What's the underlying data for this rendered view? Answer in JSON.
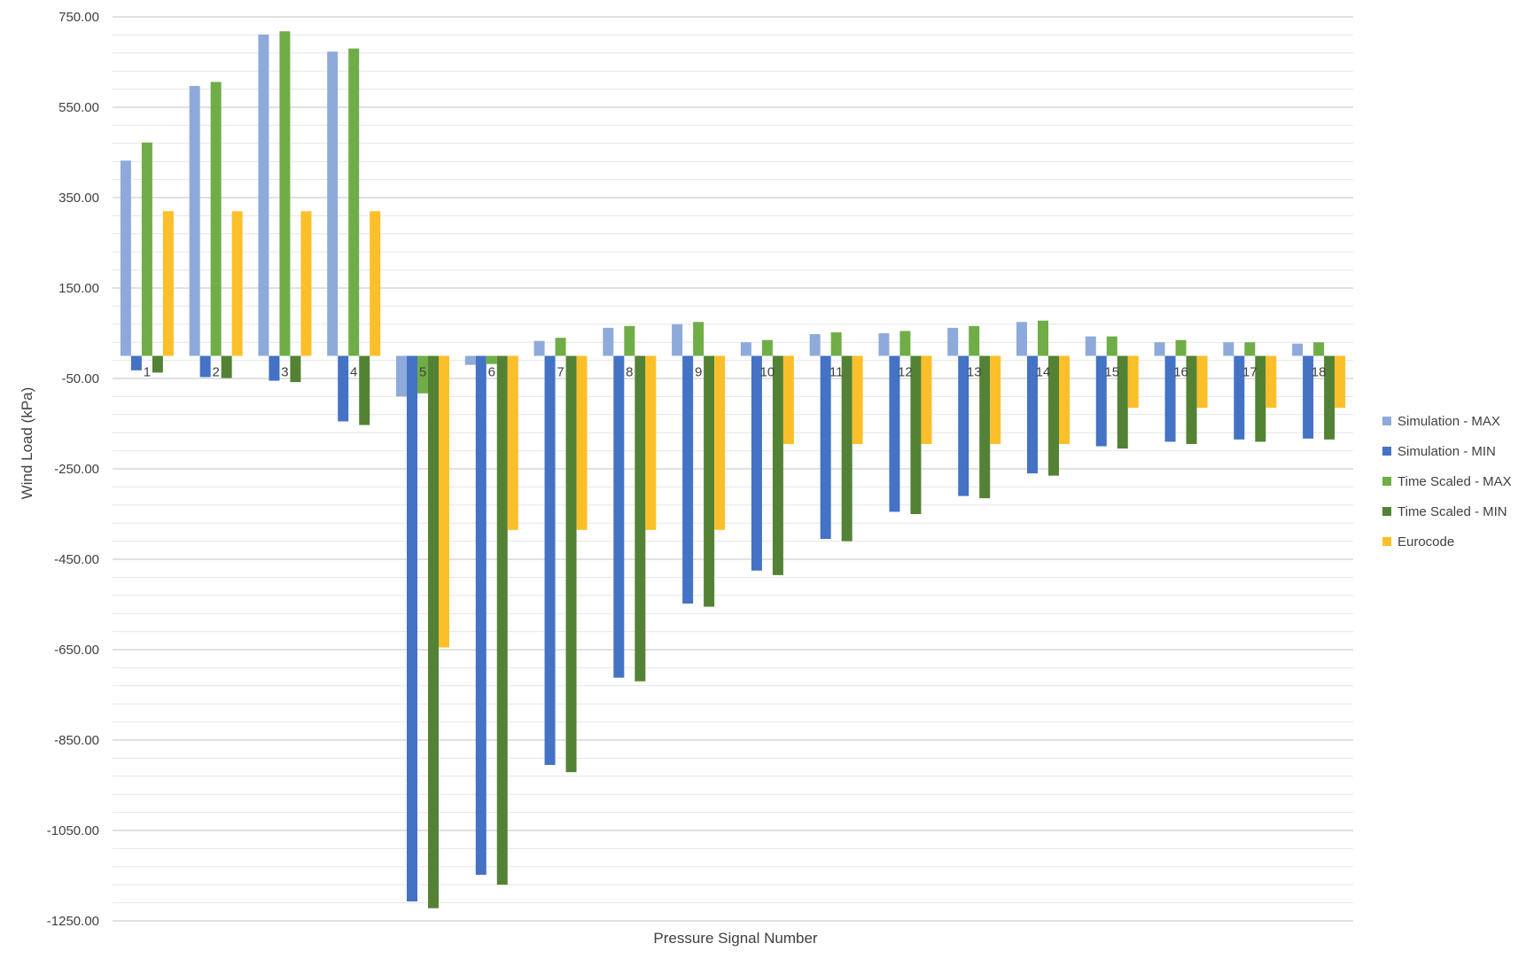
{
  "chart_data": {
    "type": "bar",
    "title": "",
    "xlabel": "Pressure Signal Number",
    "ylabel": "Wind Load (kPa)",
    "ylim": [
      -1250,
      750
    ],
    "y_ticks": [
      "750.00",
      "550.00",
      "350.00",
      "150.00",
      "-50.00",
      "-250.00",
      "-450.00",
      "-650.00",
      "-850.00",
      "-1050.00",
      "-1250.00"
    ],
    "major_step": 200,
    "minor_step": 40,
    "grid": true,
    "legend_position": "right",
    "categories": [
      "1",
      "2",
      "3",
      "4",
      "5",
      "6",
      "7",
      "8",
      "9",
      "10",
      "11",
      "12",
      "13",
      "14",
      "15",
      "16",
      "17",
      "18"
    ],
    "series": [
      {
        "name": "Simulation - MAX",
        "color": "#8eaadb",
        "values": [
          432,
          597,
          711,
          673,
          -90,
          -20,
          33,
          62,
          70,
          30,
          48,
          50,
          62,
          75,
          43,
          30,
          30,
          27
        ]
      },
      {
        "name": "Simulation - MIN",
        "color": "#4472c4",
        "values": [
          -32,
          -47,
          -55,
          -145,
          -1207,
          -1148,
          -905,
          -712,
          -548,
          -475,
          -405,
          -345,
          -310,
          -260,
          -200,
          -190,
          -185,
          -183
        ]
      },
      {
        "name": "Time Scaled - MAX",
        "color": "#70ad47",
        "values": [
          472,
          606,
          718,
          680,
          -83,
          -18,
          40,
          66,
          75,
          35,
          52,
          55,
          66,
          78,
          43,
          35,
          30,
          30
        ]
      },
      {
        "name": "Time Scaled  - MIN",
        "color": "#548235",
        "values": [
          -37,
          -49,
          -58,
          -153,
          -1222,
          -1170,
          -921,
          -720,
          -555,
          -485,
          -410,
          -350,
          -315,
          -265,
          -205,
          -195,
          -190,
          -185
        ]
      },
      {
        "name": "Eurocode",
        "color": "#fbbf2a",
        "values": [
          320,
          320,
          320,
          320,
          -645,
          -385,
          -385,
          -385,
          -385,
          -195,
          -195,
          -195,
          -195,
          -195,
          -115,
          -115,
          -115,
          -115
        ]
      }
    ]
  }
}
